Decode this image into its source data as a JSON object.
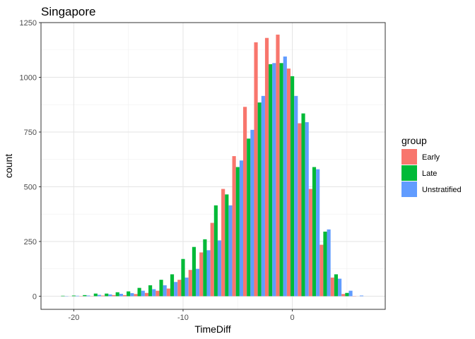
{
  "chart_data": {
    "type": "bar",
    "title": "Singapore",
    "xlabel": "TimeDiff",
    "ylabel": "count",
    "xlim": [
      -23,
      8.5
    ],
    "ylim": [
      -60,
      1250
    ],
    "x_ticks": [
      -20,
      -10,
      0
    ],
    "y_ticks": [
      0,
      250,
      500,
      750,
      1000,
      1250
    ],
    "grid": true,
    "bin_width": 1,
    "legend": {
      "title": "group",
      "position": "right"
    },
    "x": [
      -21,
      -20,
      -19,
      -18,
      -17,
      -16,
      -15,
      -14,
      -13,
      -12,
      -11,
      -10,
      -9,
      -8,
      -7,
      -6,
      -5,
      -4,
      -3,
      -2,
      -1,
      0,
      1,
      2,
      3,
      4,
      5,
      6,
      7
    ],
    "series": [
      {
        "name": "Early",
        "color": "#F8766D",
        "values": [
          0,
          0,
          1,
          1,
          3,
          5,
          5,
          10,
          15,
          25,
          35,
          75,
          120,
          200,
          335,
          490,
          640,
          865,
          1160,
          1180,
          1195,
          1040,
          790,
          490,
          235,
          85,
          10,
          1,
          0
        ]
      },
      {
        "name": "Late",
        "color": "#00BA38",
        "values": [
          2,
          3,
          5,
          12,
          12,
          18,
          22,
          38,
          50,
          75,
          100,
          170,
          225,
          260,
          415,
          465,
          590,
          720,
          885,
          1060,
          1065,
          1005,
          835,
          590,
          295,
          100,
          15,
          0,
          0
        ]
      },
      {
        "name": "Unstratified",
        "color": "#619CFF",
        "values": [
          1,
          2,
          3,
          6,
          8,
          11,
          14,
          25,
          32,
          50,
          65,
          85,
          125,
          210,
          255,
          415,
          620,
          760,
          915,
          1065,
          1095,
          915,
          795,
          580,
          305,
          80,
          25,
          3,
          0
        ]
      }
    ]
  }
}
